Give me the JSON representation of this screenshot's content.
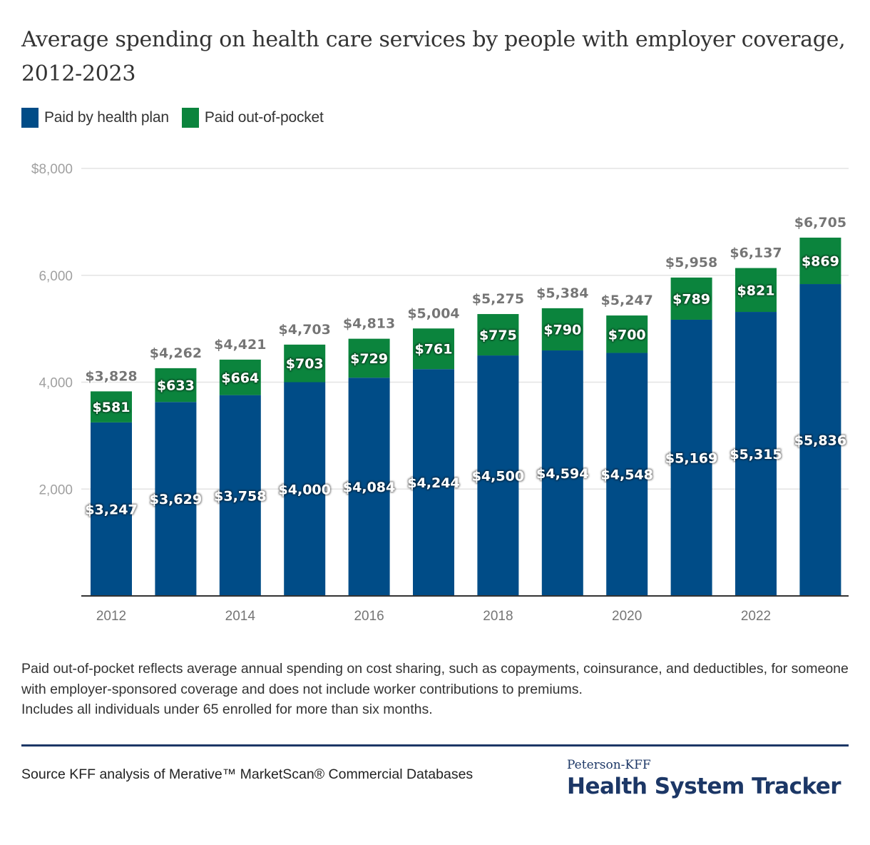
{
  "title": "Average spending on health care services by people with employer coverage, 2012-2023",
  "legend": [
    {
      "label": "Paid by health plan",
      "color": "#004c87"
    },
    {
      "label": "Paid out-of-pocket",
      "color": "#0b843d"
    }
  ],
  "chart_data": {
    "type": "bar",
    "stacked": true,
    "title": "Average spending on health care services by people with employer coverage, 2012-2023",
    "xlabel": "",
    "ylabel": "",
    "ylim": [
      0,
      8000
    ],
    "yticks": [
      {
        "value": 2000,
        "label": "2,000"
      },
      {
        "value": 4000,
        "label": "4,000"
      },
      {
        "value": 6000,
        "label": "6,000"
      },
      {
        "value": 8000,
        "label": "$8,000"
      }
    ],
    "grid": true,
    "legend_position": "top-left",
    "categories": [
      "2012",
      "2013",
      "2014",
      "2015",
      "2016",
      "2017",
      "2018",
      "2019",
      "2020",
      "2021",
      "2022",
      "2023"
    ],
    "xtick_labels": [
      "2012",
      "",
      "2014",
      "",
      "2016",
      "",
      "2018",
      "",
      "2020",
      "",
      "2022",
      ""
    ],
    "series": [
      {
        "name": "Paid by health plan",
        "color": "#004c87",
        "values": [
          3247,
          3629,
          3758,
          4000,
          4084,
          4244,
          4500,
          4594,
          4548,
          5169,
          5315,
          5836
        ],
        "labels": [
          "$3,247",
          "$3,629",
          "$3,758",
          "$4,000",
          "$4,084",
          "$4,244",
          "$4,500",
          "$4,594",
          "$4,548",
          "$5,169",
          "$5,315",
          "$5,836"
        ]
      },
      {
        "name": "Paid out-of-pocket",
        "color": "#0b843d",
        "values": [
          581,
          633,
          664,
          703,
          729,
          761,
          775,
          790,
          700,
          789,
          821,
          869
        ],
        "labels": [
          "$581",
          "$633",
          "$664",
          "$703",
          "$729",
          "$761",
          "$775",
          "$790",
          "$700",
          "$789",
          "$821",
          "$869"
        ]
      }
    ],
    "totals": [
      3828,
      4262,
      4421,
      4703,
      4813,
      5004,
      5275,
      5384,
      5247,
      5958,
      6137,
      6705
    ],
    "total_labels": [
      "$3,828",
      "$4,262",
      "$4,421",
      "$4,703",
      "$4,813",
      "$5,004",
      "$5,275",
      "$5,384",
      "$5,247",
      "$5,958",
      "$6,137",
      "$6,705"
    ]
  },
  "notes": [
    "Paid out-of-pocket reflects average annual spending on cost sharing, such as copayments, coinsurance, and deductibles, for someone with employer-sponsored coverage and does not include worker contributions to premiums.",
    "Includes all individuals under 65 enrolled for more than six months."
  ],
  "source": "Source KFF analysis of Merative™ MarketScan® Commercial Databases",
  "logo": {
    "line1": "Peterson-KFF",
    "line2": "Health System Tracker"
  }
}
